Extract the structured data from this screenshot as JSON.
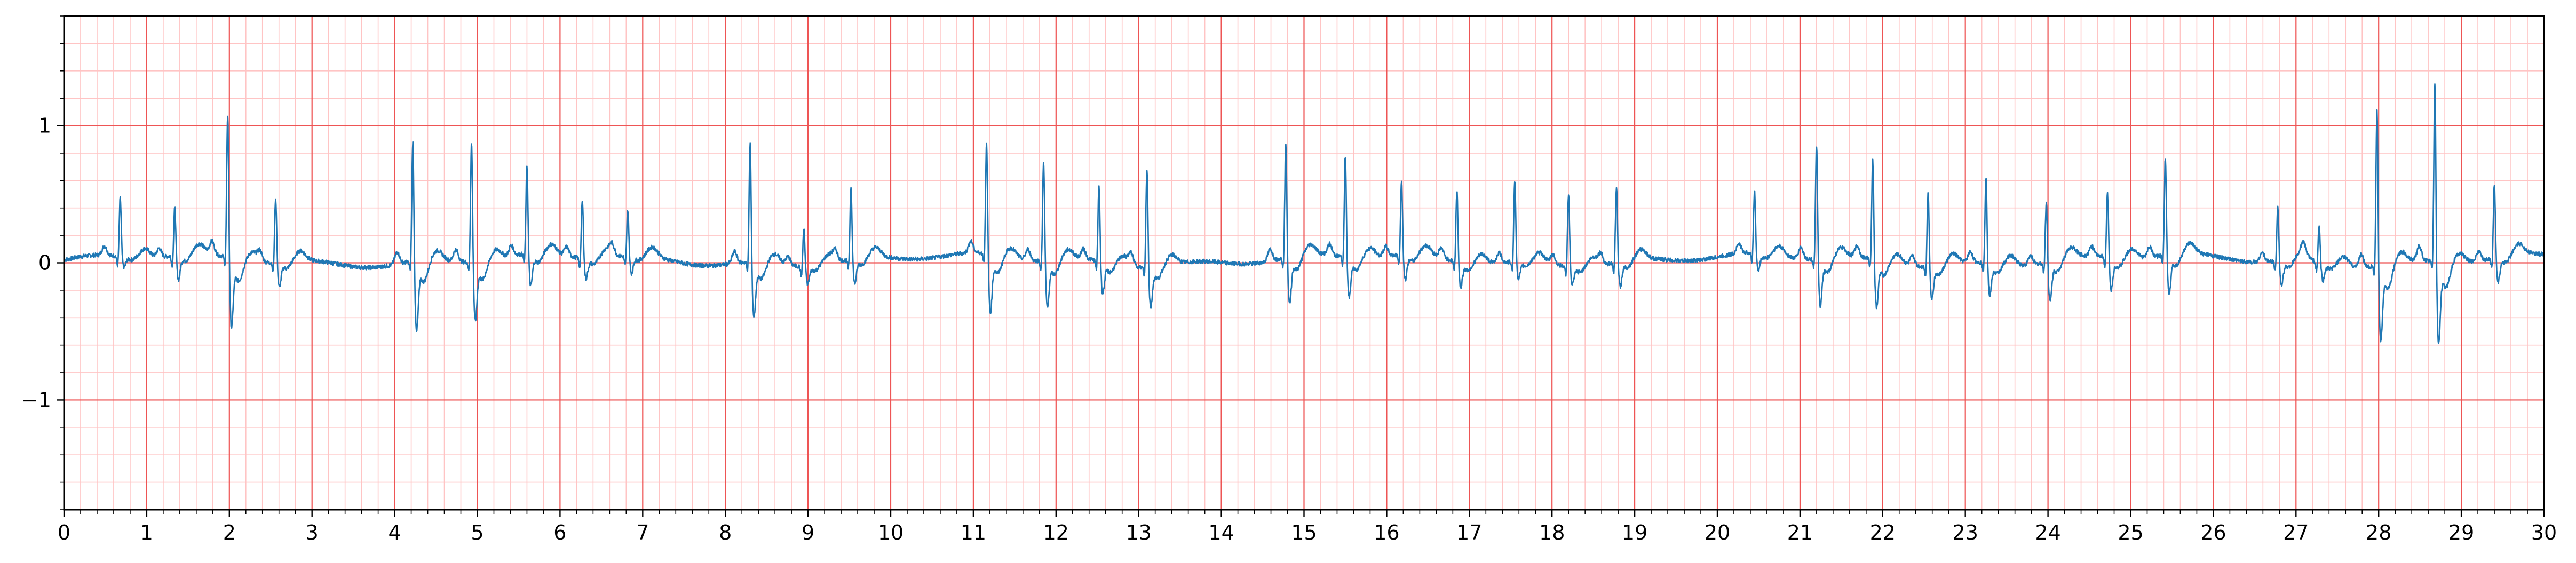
{
  "chart_data": {
    "type": "line",
    "title": "",
    "xlabel": "",
    "ylabel": "",
    "xlim": [
      0,
      30
    ],
    "ylim": [
      -1.8,
      1.8
    ],
    "x_ticks": [
      0,
      1,
      2,
      3,
      4,
      5,
      6,
      7,
      8,
      9,
      10,
      11,
      12,
      13,
      14,
      15,
      16,
      17,
      18,
      19,
      20,
      21,
      22,
      23,
      24,
      25,
      26,
      27,
      28,
      29,
      30
    ],
    "x_tick_labels": [
      "0",
      "1",
      "2",
      "3",
      "4",
      "5",
      "6",
      "7",
      "8",
      "9",
      "10",
      "11",
      "12",
      "13",
      "14",
      "15",
      "16",
      "17",
      "18",
      "19",
      "20",
      "21",
      "22",
      "23",
      "24",
      "25",
      "26",
      "27",
      "28",
      "29",
      "30"
    ],
    "y_ticks": [
      -1,
      0,
      1
    ],
    "y_tick_labels": [
      "−1",
      "0",
      "1"
    ],
    "grid": true,
    "grid_major_x_step": 1,
    "grid_major_y_step": 1,
    "grid_minor_x_step": 0.2,
    "grid_minor_y_step": 0.2,
    "legend": "none",
    "series": [
      {
        "baseline": 0.02,
        "beats": [
          {
            "t": 0.68,
            "r": 0.45,
            "s": -0.05
          },
          {
            "t": 1.34,
            "r": 0.38,
            "s": -0.15
          },
          {
            "t": 1.98,
            "r": 1.1,
            "s": -0.45
          },
          {
            "t": 2.56,
            "r": 0.5,
            "s": -0.15
          },
          {
            "t": 4.22,
            "r": 0.93,
            "s": -0.45
          },
          {
            "t": 4.93,
            "r": 0.92,
            "s": -0.38
          },
          {
            "t": 5.6,
            "r": 0.68,
            "s": -0.2
          },
          {
            "t": 6.27,
            "r": 0.45,
            "s": -0.12
          },
          {
            "t": 6.82,
            "r": 0.37,
            "s": -0.1
          },
          {
            "t": 8.3,
            "r": 0.92,
            "s": -0.35
          },
          {
            "t": 8.95,
            "r": 0.3,
            "s": -0.1
          },
          {
            "t": 9.52,
            "r": 0.56,
            "s": -0.15
          },
          {
            "t": 11.16,
            "r": 0.85,
            "s": -0.38
          },
          {
            "t": 11.85,
            "r": 0.77,
            "s": -0.3
          },
          {
            "t": 12.52,
            "r": 0.58,
            "s": -0.2
          },
          {
            "t": 13.1,
            "r": 0.76,
            "s": -0.25
          },
          {
            "t": 14.78,
            "r": 0.89,
            "s": -0.3
          },
          {
            "t": 15.5,
            "r": 0.78,
            "s": -0.25
          },
          {
            "t": 16.18,
            "r": 0.57,
            "s": -0.15
          },
          {
            "t": 16.85,
            "r": 0.55,
            "s": -0.15
          },
          {
            "t": 17.55,
            "r": 0.62,
            "s": -0.1
          },
          {
            "t": 18.2,
            "r": 0.56,
            "s": -0.1
          },
          {
            "t": 18.78,
            "r": 0.58,
            "s": -0.15
          },
          {
            "t": 20.45,
            "r": 0.48,
            "s": -0.1
          },
          {
            "t": 21.2,
            "r": 0.88,
            "s": -0.3
          },
          {
            "t": 21.88,
            "r": 0.78,
            "s": -0.3
          },
          {
            "t": 22.55,
            "r": 0.58,
            "s": -0.2
          },
          {
            "t": 23.25,
            "r": 0.67,
            "s": -0.2
          },
          {
            "t": 23.98,
            "r": 0.48,
            "s": -0.25
          },
          {
            "t": 24.72,
            "r": 0.5,
            "s": -0.2
          },
          {
            "t": 25.42,
            "r": 0.75,
            "s": -0.25
          },
          {
            "t": 26.78,
            "r": 0.44,
            "s": -0.15
          },
          {
            "t": 27.28,
            "r": 0.3,
            "s": -0.1
          },
          {
            "t": 27.98,
            "r": 1.2,
            "s": -0.5
          },
          {
            "t": 28.68,
            "r": 1.37,
            "s": -0.53
          },
          {
            "t": 29.4,
            "r": 0.57,
            "s": -0.15
          }
        ]
      }
    ]
  },
  "colors": {
    "trace": "#1f77b4",
    "major_grid": "#ee5555",
    "minor_grid": "#ffc4c4",
    "axes": "#000000",
    "background": "#ffffff"
  }
}
